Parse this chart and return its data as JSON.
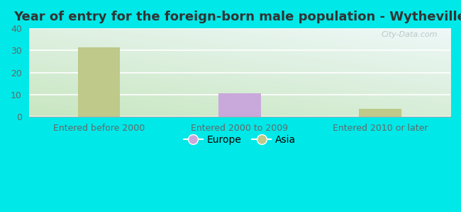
{
  "title": "Year of entry for the foreign-born male population - Wytheville",
  "categories": [
    "Entered before 2000",
    "Entered 2000 to 2009",
    "Entered 2010 or later"
  ],
  "europe_values": [
    0,
    10.5,
    0
  ],
  "asia_values": [
    31.5,
    0,
    3.5
  ],
  "europe_color": "#c9a8dc",
  "asia_color": "#bec98a",
  "ylim": [
    0,
    40
  ],
  "yticks": [
    0,
    10,
    20,
    30,
    40
  ],
  "background_outer": "#00e8e8",
  "bar_width": 0.3,
  "title_fontsize": 13,
  "tick_fontsize": 9,
  "watermark": "City-Data.com",
  "plot_bg_color_bottom": "#c8e6c0",
  "plot_bg_color_top": "#eef8f8",
  "grid_color": "#ffffff",
  "spine_color": "#aaaaaa"
}
